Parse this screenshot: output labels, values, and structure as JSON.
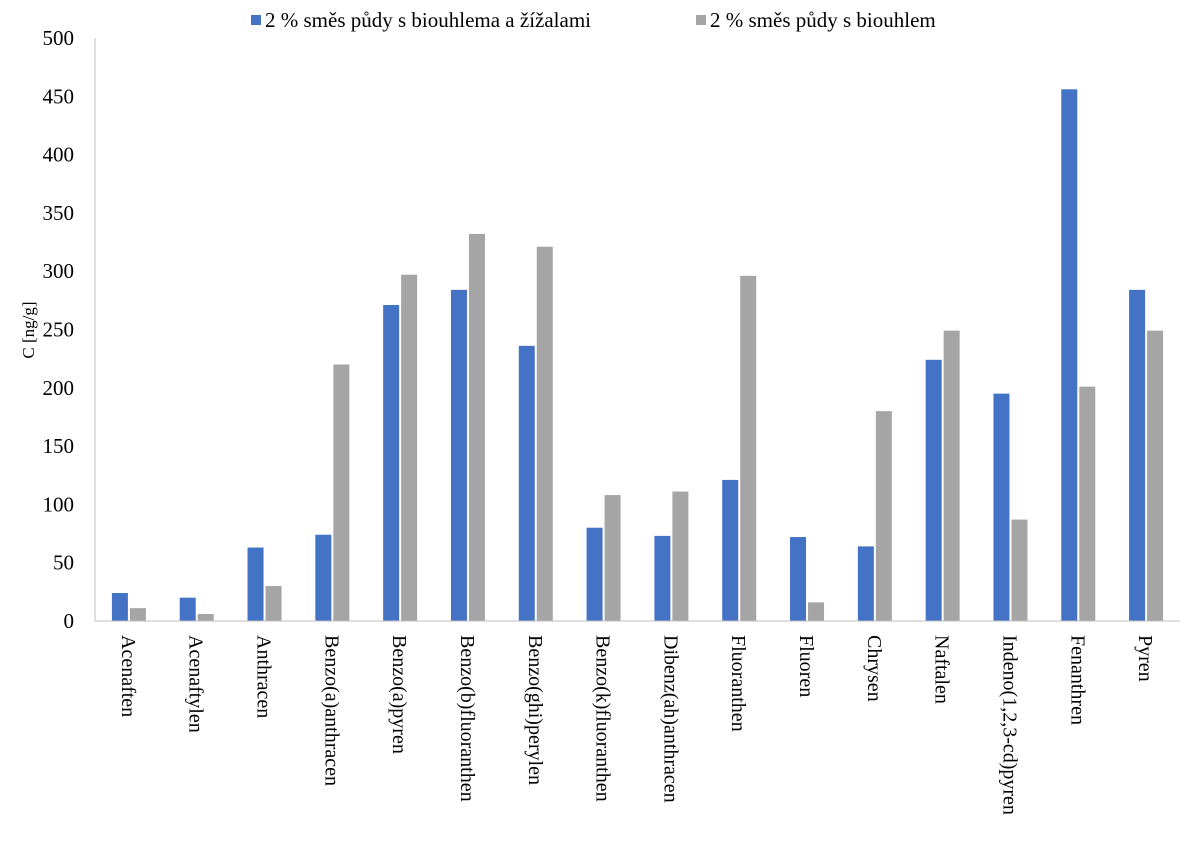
{
  "chart_data": {
    "type": "bar",
    "title": "",
    "xlabel": "",
    "ylabel": "C [ng/g]",
    "ylim": [
      0,
      500
    ],
    "yticks": [
      0,
      50,
      100,
      150,
      200,
      250,
      300,
      350,
      400,
      450,
      500
    ],
    "grid": false,
    "legend_position": "top",
    "categories": [
      "Acenaften",
      "Acenaftylen",
      "Anthracen",
      "Benzo(a)anthracen",
      "Benzo(a)pyren",
      "Benzo(b)fluoranthen",
      "Benzo(ghi)perylen",
      "Benzo(k)fluoranthen",
      "Dibenz(ah)anthracen",
      "Fluoranthen",
      "Fluoren",
      "Chrysen",
      "Naftalen",
      "Indeno(1,2,3-cd)pyren",
      "Fenanthren",
      "Pyren"
    ],
    "series": [
      {
        "name": "2 % směs půdy s biouhlema a žížalami",
        "color": "#4472C4",
        "values": [
          24,
          20,
          63,
          74,
          271,
          284,
          236,
          80,
          73,
          121,
          72,
          64,
          224,
          195,
          456,
          284
        ]
      },
      {
        "name": "2 % směs půdy s biouhlem",
        "color": "#A5A5A5",
        "values": [
          11,
          6,
          30,
          220,
          297,
          332,
          321,
          108,
          111,
          296,
          16,
          180,
          249,
          87,
          201,
          249
        ]
      }
    ]
  }
}
